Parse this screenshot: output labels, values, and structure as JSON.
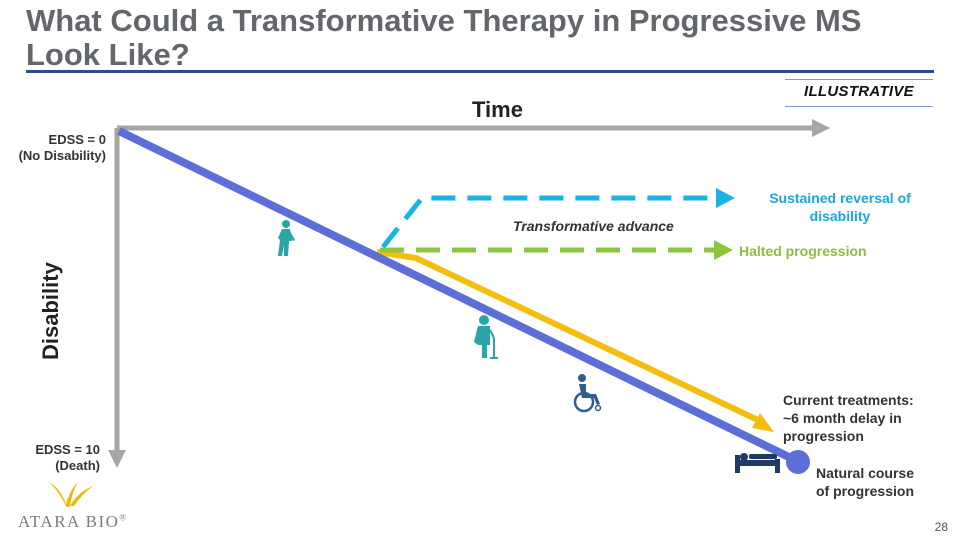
{
  "title": "What Could a Transformative Therapy in Progressive MS Look Like?",
  "badge": "ILLUSTRATIVE",
  "axes": {
    "x_label": "Time",
    "y_label": "Disability",
    "top_label_line1": "EDSS = 0",
    "top_label_line2": "(No Disability)",
    "bottom_label_line1": "EDSS = 10",
    "bottom_label_line2": "(Death)"
  },
  "annotations": {
    "sustained_line1": "Sustained reversal of",
    "sustained_line2": "disability",
    "halted": "Halted progression",
    "transformative": "Transformative advance",
    "current_line1": "Current treatments:",
    "current_line2": "~6 month delay in",
    "current_line3": "progression",
    "natural_line1": "Natural course",
    "natural_line2": "of progression"
  },
  "icons": [
    "walking-person-icon",
    "person-with-cane-icon",
    "wheelchair-icon",
    "bed-icon"
  ],
  "colors": {
    "natural_course": "#5b6fd6",
    "current_treatment": "#f5bd0d",
    "sustained_reversal": "#1bb3e6",
    "halted_progression": "#8cc63f",
    "axes": "#a6a6a6",
    "title_rule": "#2e4a8f"
  },
  "logo": {
    "text": "ATARA BIO",
    "mark": "®"
  },
  "page_number": "28"
}
